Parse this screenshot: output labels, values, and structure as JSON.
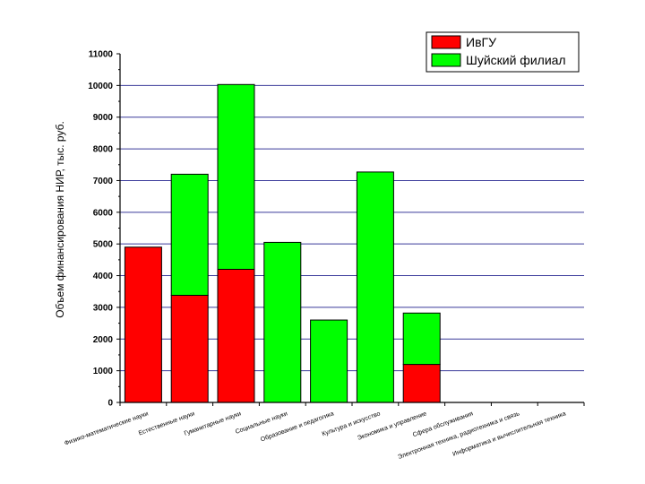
{
  "chart_data": {
    "type": "bar",
    "stacked": true,
    "title": "",
    "xlabel": "",
    "ylabel": "Объем финансирования НИР, тыс. руб.",
    "ylim": [
      0,
      11000
    ],
    "yticks": [
      0,
      1000,
      2000,
      3000,
      4000,
      5000,
      6000,
      7000,
      8000,
      9000,
      10000,
      11000
    ],
    "grid": true,
    "legend_position": "top-right",
    "categories": [
      "Физико-математические науки",
      "Естественные науки",
      "Гуманитарные науки",
      "Социальные науки",
      "Образование и педагогика",
      "Культура и искусство",
      "Экономика и управление",
      "Сфера обслуживания",
      "Электронная техника, радиотехника и связь",
      "Информатика и вычислительная техника"
    ],
    "series": [
      {
        "name": "ИвГУ",
        "color": "#ff0000",
        "values": [
          4900,
          3380,
          4200,
          0,
          0,
          0,
          1200,
          0,
          0,
          0
        ]
      },
      {
        "name": "Шуйский филиал",
        "color": "#00ff00",
        "values": [
          0,
          3820,
          5830,
          5050,
          2600,
          7270,
          1620,
          0,
          0,
          0
        ]
      }
    ],
    "gridline_color": "#3a3a9a"
  }
}
